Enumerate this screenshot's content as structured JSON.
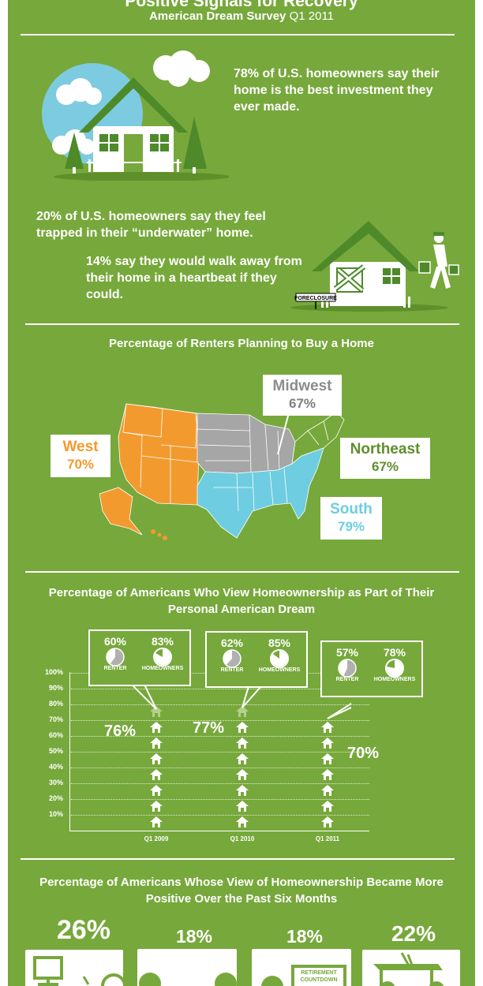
{
  "header": {
    "title": "Positive Signals for Recovery",
    "subtitle_bold": "American Dream Survey",
    "subtitle_quarter": "Q1 2011"
  },
  "stats": {
    "best_investment": "78% of U.S. homeowners say their home is the best investment they ever made.",
    "trapped": "20% of U.S. homeowners say they feel trapped in their “underwater” home.",
    "walk_away": "14% say they would walk away from their home in a heartbeat if they could.",
    "foreclosure_sign": "FORECLOSURE"
  },
  "map": {
    "title": "Percentage of Renters Planning to Buy a Home",
    "regions": [
      {
        "name": "West",
        "value": "70%",
        "color": "#f39a2f"
      },
      {
        "name": "Midwest",
        "value": "67%",
        "color": "#a6a6a6"
      },
      {
        "name": "Northeast",
        "value": "67%",
        "color": "#77a83b"
      },
      {
        "name": "South",
        "value": "79%",
        "color": "#6ecde0"
      }
    ]
  },
  "chart_data": [
    {
      "type": "bar",
      "title": "Percentage of Americans Who View Homeownership as Part of Their Personal American Dream",
      "categories": [
        "Q1 2009",
        "Q1 2010",
        "Q1 2011"
      ],
      "values": [
        76,
        77,
        70
      ],
      "value_labels": [
        "76%",
        "77%",
        "70%"
      ],
      "y_ticks": [
        "10%",
        "20%",
        "30%",
        "40%",
        "50%",
        "60%",
        "70%",
        "80%",
        "90%",
        "100%"
      ],
      "ylim": [
        0,
        100
      ],
      "callouts": [
        {
          "renter": "60%",
          "homeowners": "83%",
          "renter_value": 60,
          "homeowner_value": 83
        },
        {
          "renter": "62%",
          "homeowners": "85%",
          "renter_value": 62,
          "homeowner_value": 85
        },
        {
          "renter": "57%",
          "homeowners": "78%",
          "renter_value": 57,
          "homeowner_value": 78
        }
      ],
      "renter_label": "RENTER",
      "homeowners_label": "HOMEOWNERS"
    },
    {
      "type": "table",
      "title": "Percentage of Americans Whose View of Homeownership Became More Positive Over the Past Six Months",
      "values": [
        "26%",
        "18%",
        "18%",
        "22%"
      ],
      "card_text": "RETIREMENT COUNTDOWN"
    }
  ],
  "colors": {
    "background": "#77a83b",
    "west": "#f39a2f",
    "south": "#6ecde0",
    "midwest": "#a6a6a6",
    "northeast": "#77a83b",
    "sky": "#7dcbe0"
  }
}
